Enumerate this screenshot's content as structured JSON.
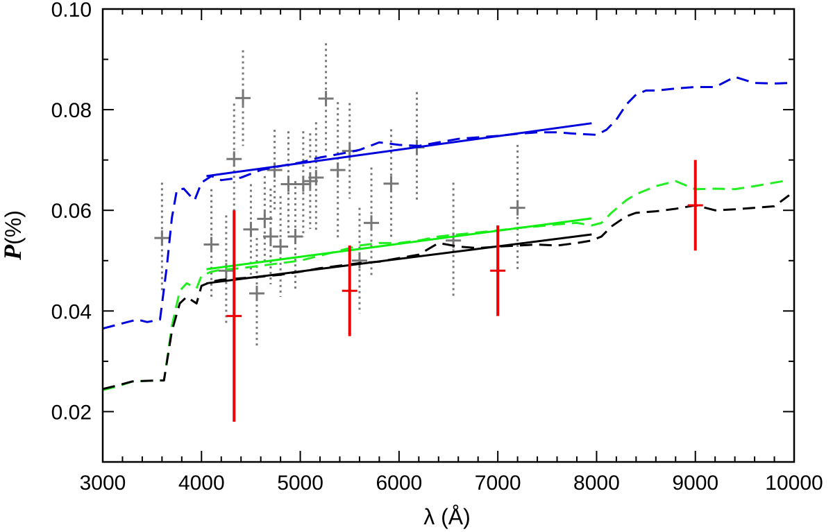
{
  "chart_data": {
    "type": "line",
    "xlabel": "λ (Å)",
    "ylabel": "P(%)",
    "ylabel_symbol": "P",
    "ylabel_unit": "(%)",
    "xlim": [
      3000,
      10000
    ],
    "ylim": [
      0.01,
      0.1
    ],
    "x_ticks": [
      3000,
      4000,
      5000,
      6000,
      7000,
      8000,
      9000,
      10000
    ],
    "y_ticks": [
      0.02,
      0.04,
      0.06,
      0.08,
      0.1
    ],
    "x_tick_labels": [
      "3000",
      "4000",
      "5000",
      "6000",
      "7000",
      "8000",
      "9000",
      "10000"
    ],
    "y_tick_labels": [
      "0.02",
      "0.04",
      "0.06",
      "0.08",
      "0.10"
    ],
    "series": [
      {
        "style": "dashed",
        "color": "#0000dd",
        "x": [
          3000,
          3250,
          3350,
          3450,
          3580,
          3650,
          3700,
          3750,
          3820,
          3880,
          3930,
          4000,
          4100,
          4200,
          4400,
          4600,
          4800,
          5000,
          5200,
          5400,
          5600,
          5800,
          6000,
          6200,
          6400,
          6600,
          6800,
          7000,
          7200,
          7400,
          7600,
          7800,
          8000,
          8100,
          8200,
          8300,
          8400,
          8500,
          8600,
          8800,
          9000,
          9200,
          9400,
          9600,
          9800,
          9950
        ],
        "y": [
          0.0365,
          0.0378,
          0.0383,
          0.0378,
          0.0383,
          0.049,
          0.0585,
          0.064,
          0.0643,
          0.063,
          0.062,
          0.0655,
          0.0668,
          0.066,
          0.0665,
          0.068,
          0.0688,
          0.0695,
          0.0705,
          0.0712,
          0.072,
          0.0735,
          0.073,
          0.0728,
          0.0735,
          0.0742,
          0.0745,
          0.0748,
          0.0752,
          0.0755,
          0.0755,
          0.0752,
          0.075,
          0.076,
          0.078,
          0.081,
          0.083,
          0.0838,
          0.0838,
          0.0842,
          0.0845,
          0.0845,
          0.0865,
          0.0853,
          0.0852,
          0.0853
        ]
      },
      {
        "style": "dashed",
        "color": "#22ee22",
        "x": [
          3000,
          3150,
          3300,
          3550,
          3620,
          3700,
          3780,
          3850,
          3950,
          4000,
          4100,
          4200,
          4400,
          4600,
          4800,
          5000,
          5200,
          5400,
          5600,
          5800,
          6000,
          6200,
          6400,
          6600,
          6800,
          7000,
          7200,
          7400,
          7600,
          7800,
          7950,
          8050,
          8150,
          8300,
          8400,
          8600,
          8800,
          9000,
          9200,
          9400,
          9600,
          9800,
          9950
        ],
        "y": [
          0.0243,
          0.025,
          0.026,
          0.0262,
          0.0262,
          0.037,
          0.044,
          0.0455,
          0.0445,
          0.047,
          0.0478,
          0.0482,
          0.0485,
          0.049,
          0.0495,
          0.05,
          0.051,
          0.052,
          0.053,
          0.0535,
          0.0535,
          0.054,
          0.0548,
          0.0552,
          0.0556,
          0.056,
          0.0565,
          0.0568,
          0.0572,
          0.0575,
          0.057,
          0.0575,
          0.0595,
          0.062,
          0.0632,
          0.0648,
          0.0658,
          0.0642,
          0.0643,
          0.0642,
          0.0648,
          0.0655,
          0.066
        ]
      },
      {
        "style": "dashed",
        "color": "#000000",
        "x": [
          3000,
          3150,
          3300,
          3550,
          3620,
          3700,
          3780,
          3850,
          3950,
          4000,
          4100,
          4200,
          4400,
          4600,
          4800,
          5000,
          5200,
          5400,
          5600,
          5800,
          6000,
          6200,
          6400,
          6600,
          6800,
          7000,
          7200,
          7400,
          7600,
          7800,
          7950,
          8050,
          8150,
          8300,
          8400,
          8600,
          8800,
          9000,
          9200,
          9400,
          9600,
          9800,
          9950
        ],
        "y": [
          0.0245,
          0.0252,
          0.026,
          0.0262,
          0.0262,
          0.036,
          0.0415,
          0.0428,
          0.0415,
          0.045,
          0.0458,
          0.0462,
          0.0465,
          0.0468,
          0.0472,
          0.0478,
          0.0485,
          0.049,
          0.0495,
          0.0498,
          0.0505,
          0.0512,
          0.0535,
          0.0528,
          0.0525,
          0.0528,
          0.053,
          0.0532,
          0.053,
          0.0535,
          0.054,
          0.0548,
          0.0568,
          0.0588,
          0.0595,
          0.0598,
          0.0603,
          0.061,
          0.06,
          0.0602,
          0.0605,
          0.0608,
          0.063
        ]
      }
    ],
    "fit_lines": [
      {
        "color": "#0000dd",
        "x": [
          4050,
          7950
        ],
        "y": [
          0.0668,
          0.0773
        ]
      },
      {
        "color": "#11ee11",
        "x": [
          4050,
          7950
        ],
        "y": [
          0.0483,
          0.0584
        ]
      },
      {
        "color": "#000000",
        "x": [
          4050,
          7950
        ],
        "y": [
          0.0455,
          0.0552
        ]
      }
    ],
    "gray_points": {
      "color": "#777777",
      "points": [
        {
          "x": 3600,
          "y": 0.0545,
          "yerr": 0.011
        },
        {
          "x": 4100,
          "y": 0.0532,
          "yerr": 0.011
        },
        {
          "x": 4250,
          "y": 0.048,
          "yerr": 0.011
        },
        {
          "x": 4330,
          "y": 0.0702,
          "yerr": 0.011
        },
        {
          "x": 4420,
          "y": 0.0823,
          "yerr": 0.0095
        },
        {
          "x": 4500,
          "y": 0.0562,
          "yerr": 0.009
        },
        {
          "x": 4560,
          "y": 0.0435,
          "yerr": 0.011
        },
        {
          "x": 4640,
          "y": 0.0583,
          "yerr": 0.0085
        },
        {
          "x": 4700,
          "y": 0.0548,
          "yerr": 0.0095
        },
        {
          "x": 4740,
          "y": 0.068,
          "yerr": 0.008
        },
        {
          "x": 4800,
          "y": 0.0528,
          "yerr": 0.01
        },
        {
          "x": 4880,
          "y": 0.0652,
          "yerr": 0.0105
        },
        {
          "x": 4950,
          "y": 0.0548,
          "yerr": 0.011
        },
        {
          "x": 5030,
          "y": 0.0652,
          "yerr": 0.0105
        },
        {
          "x": 5100,
          "y": 0.0658,
          "yerr": 0.0095
        },
        {
          "x": 5160,
          "y": 0.0665,
          "yerr": 0.011
        },
        {
          "x": 5260,
          "y": 0.0822,
          "yerr": 0.011
        },
        {
          "x": 5380,
          "y": 0.068,
          "yerr": 0.0135
        },
        {
          "x": 5500,
          "y": 0.0718,
          "yerr": 0.0095
        },
        {
          "x": 5600,
          "y": 0.05,
          "yerr": 0.0105
        },
        {
          "x": 5720,
          "y": 0.0575,
          "yerr": 0.011
        },
        {
          "x": 5920,
          "y": 0.0653,
          "yerr": 0.0108
        },
        {
          "x": 6180,
          "y": 0.0725,
          "yerr": 0.011
        },
        {
          "x": 6550,
          "y": 0.054,
          "yerr": 0.0115
        },
        {
          "x": 7200,
          "y": 0.0605,
          "yerr": 0.0125
        }
      ]
    },
    "red_points": {
      "color": "#ee0000",
      "points": [
        {
          "x": 4330,
          "y": 0.039,
          "ylow": 0.018,
          "yhigh": 0.06
        },
        {
          "x": 5500,
          "y": 0.044,
          "ylow": 0.035,
          "yhigh": 0.053
        },
        {
          "x": 7000,
          "y": 0.048,
          "ylow": 0.039,
          "yhigh": 0.057
        },
        {
          "x": 9000,
          "y": 0.061,
          "ylow": 0.052,
          "yhigh": 0.07
        }
      ]
    }
  }
}
